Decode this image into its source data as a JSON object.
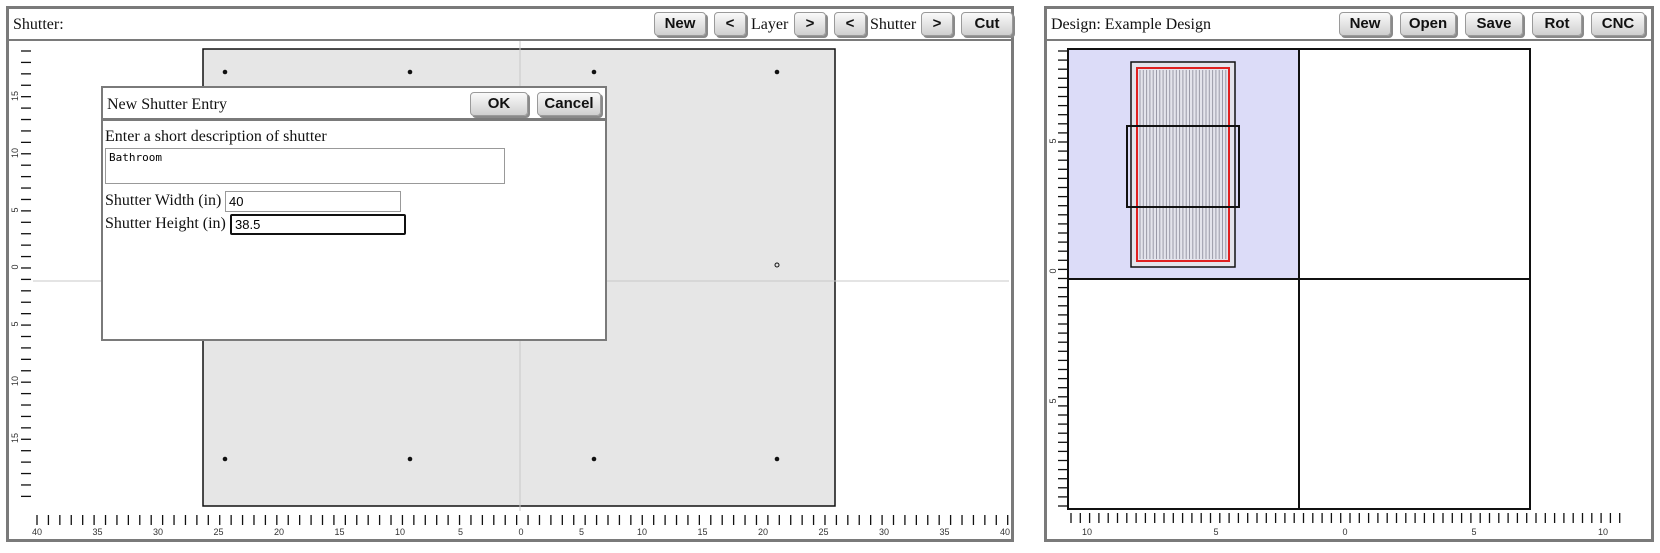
{
  "left_panel": {
    "title": "Shutter:",
    "buttons": {
      "new": "New",
      "layer_prev": "<",
      "layer_label": "Layer",
      "layer_next": ">",
      "shutter_prev": "<",
      "shutter_label": "Shutter",
      "shutter_next": ">",
      "cut": "Cut"
    },
    "colors": {
      "canvas_bg": "#e6e6e6",
      "axis": "#c8c8c8"
    },
    "y_ticks": [
      "15",
      "10",
      "5",
      "0",
      "5",
      "10",
      "15"
    ],
    "x_ticks": [
      "40",
      "35",
      "30",
      "25",
      "20",
      "15",
      "10",
      "5",
      "0",
      "5",
      "10",
      "15",
      "20",
      "25",
      "30",
      "35",
      "40"
    ]
  },
  "dialog": {
    "title": "New Shutter Entry",
    "ok": "OK",
    "cancel": "Cancel",
    "description_label": "Enter a short description of shutter",
    "description_value": "Bathroom",
    "width_label": "Shutter Width (in)",
    "width_value": "40",
    "height_label": "Shutter Height (in)",
    "height_value": "38.5"
  },
  "right_panel": {
    "title": "Design: Example Design",
    "buttons": {
      "new": "New",
      "open": "Open",
      "save": "Save",
      "rot": "Rot",
      "cnc": "CNC"
    },
    "colors": {
      "quadrant_fill": "#dcdcf8",
      "outline_red": "#e02020",
      "slat": "#9a9aa8"
    },
    "y_ticks": [
      "5",
      "0",
      "5"
    ],
    "x_ticks": [
      "10",
      "5",
      "0",
      "5",
      "10"
    ]
  }
}
